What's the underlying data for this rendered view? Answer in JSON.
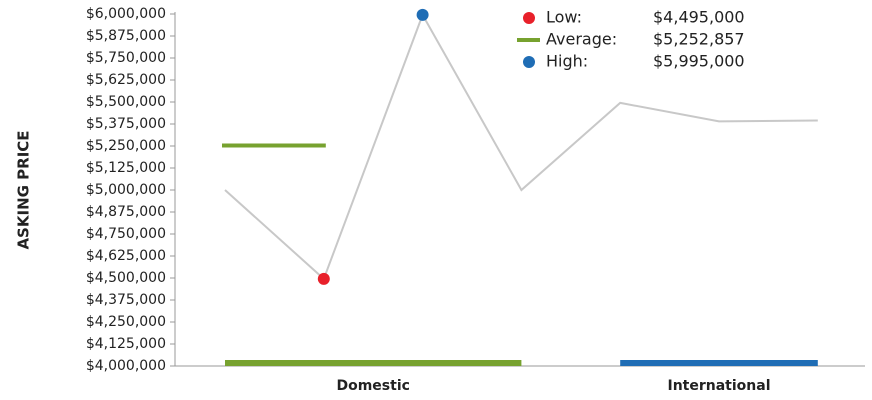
{
  "chart_data": {
    "type": "line",
    "y_label": "ASKING PRICE",
    "series": [
      {
        "name": "Asking price",
        "color": "#c8c8c8",
        "values": [
          5000000,
          4495000,
          5995000,
          5000000,
          5495000,
          5390000,
          5395000
        ]
      }
    ],
    "groups": [
      {
        "name": "Domestic",
        "count": 4,
        "color": "#77a22f"
      },
      {
        "name": "International",
        "count": 3,
        "color": "#1f6db5"
      }
    ],
    "summary": [
      {
        "name": "Low:",
        "value": 4495000,
        "label": "$4,495,000",
        "color": "#e8202a",
        "marker": "dot"
      },
      {
        "name": "Average:",
        "value": 5252857,
        "label": "$5,252,857",
        "color": "#77a22f",
        "marker": "line"
      },
      {
        "name": "High:",
        "value": 5995000,
        "label": "$5,995,000",
        "color": "#1f6db5",
        "marker": "dot"
      }
    ],
    "ylim": [
      4000000,
      6000000
    ],
    "yticks": [
      {
        "value": 4000000,
        "label": "$4,000,000"
      },
      {
        "value": 4125000,
        "label": "$4,125,000"
      },
      {
        "value": 4250000,
        "label": "$4,250,000"
      },
      {
        "value": 4375000,
        "label": "$4,375,000"
      },
      {
        "value": 4500000,
        "label": "$4,500,000"
      },
      {
        "value": 4625000,
        "label": "$4,625,000"
      },
      {
        "value": 4750000,
        "label": "$4,750,000"
      },
      {
        "value": 4875000,
        "label": "$4,875,000"
      },
      {
        "value": 5000000,
        "label": "$5,000,000"
      },
      {
        "value": 5125000,
        "label": "$5,125,000"
      },
      {
        "value": 5250000,
        "label": "$5,250,000"
      },
      {
        "value": 5375000,
        "label": "$5,375,000"
      },
      {
        "value": 5500000,
        "label": "$5,500,000"
      },
      {
        "value": 5625000,
        "label": "$5,625,000"
      },
      {
        "value": 5750000,
        "label": "$5,750,000"
      },
      {
        "value": 5875000,
        "label": "$5,875,000"
      },
      {
        "value": 6000000,
        "label": "$6,000,000"
      }
    ]
  }
}
